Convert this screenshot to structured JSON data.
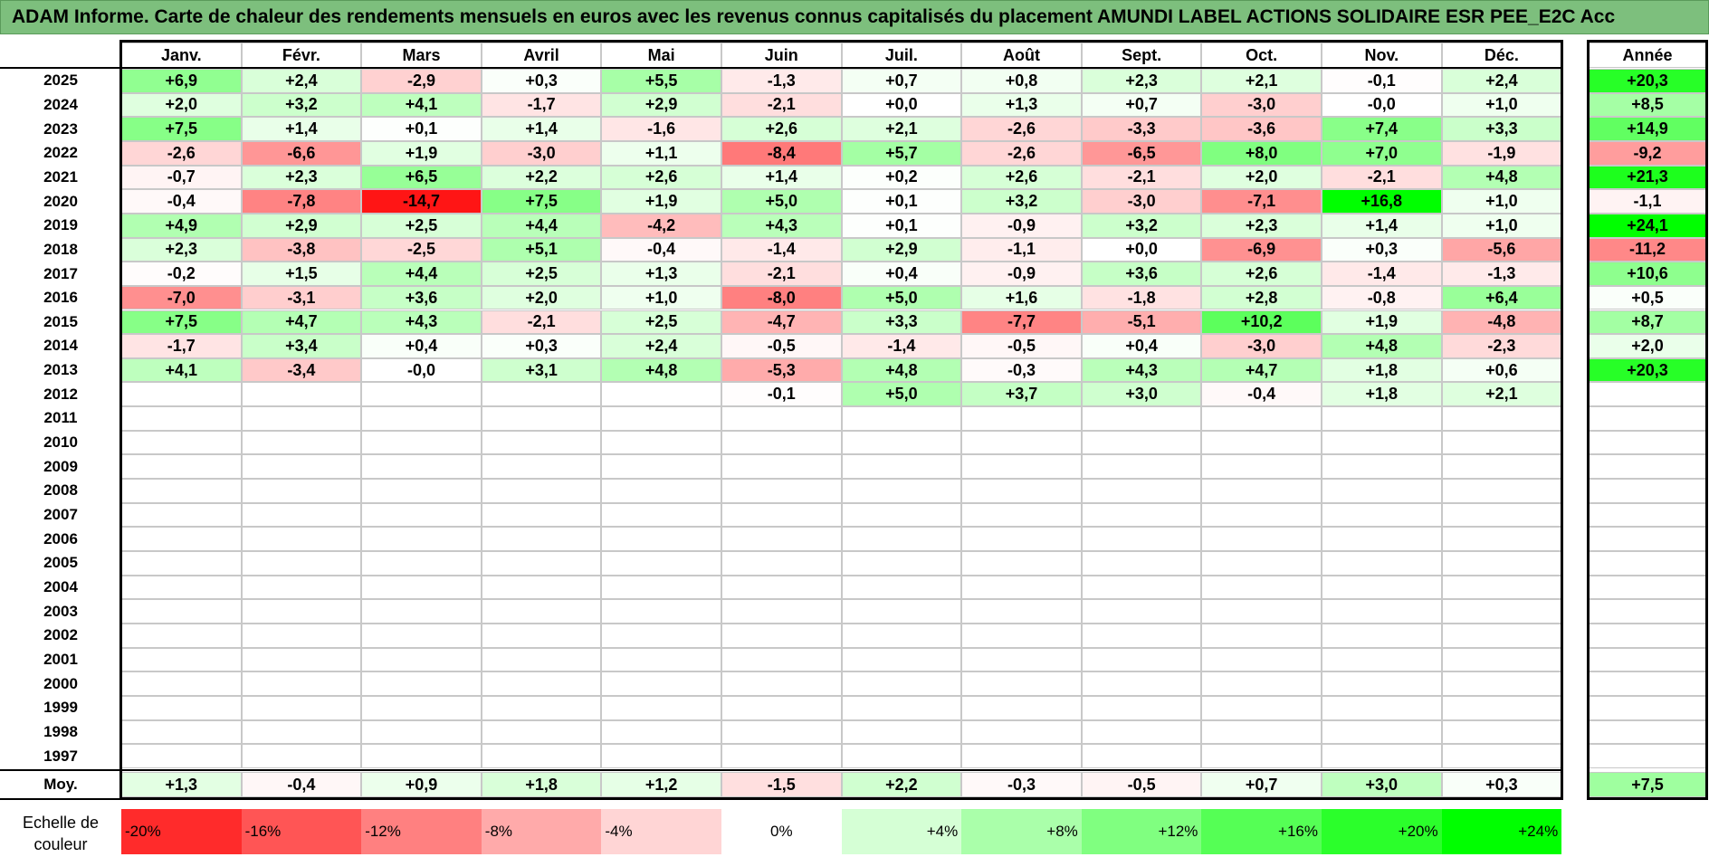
{
  "title": "ADAM Informe. Carte de chaleur des rendements mensuels en euros avec les revenus connus capitalisés du placement AMUNDI LABEL ACTIONS SOLIDAIRE ESR PEE_E2C Acc",
  "legend_label": "Echelle de couleur",
  "avg_label": "Moy.",
  "year_header": "Année",
  "colors": {
    "title_bg": "#7dbf7d",
    "neg_max": "#ff0000",
    "zero": "#ffffff",
    "pos_max": "#00ff00"
  },
  "chart_data": {
    "type": "heatmap",
    "months": [
      "Janv.",
      "Févr.",
      "Mars",
      "Avril",
      "Mai",
      "Juin",
      "Juil.",
      "Août",
      "Sept.",
      "Oct.",
      "Nov.",
      "Déc."
    ],
    "rows": [
      {
        "year": "2025",
        "values": [
          "+6,9",
          "+2,4",
          "-2,9",
          "+0,3",
          "+5,5",
          "-1,3",
          "+0,7",
          "+0,8",
          "+2,3",
          "+2,1",
          "-0,1",
          "+2,4"
        ],
        "annual": "+20,3"
      },
      {
        "year": "2024",
        "values": [
          "+2,0",
          "+3,2",
          "+4,1",
          "-1,7",
          "+2,9",
          "-2,1",
          "+0,0",
          "+1,3",
          "+0,7",
          "-3,0",
          "-0,0",
          "+1,0"
        ],
        "annual": "+8,5"
      },
      {
        "year": "2023",
        "values": [
          "+7,5",
          "+1,4",
          "+0,1",
          "+1,4",
          "-1,6",
          "+2,6",
          "+2,1",
          "-2,6",
          "-3,3",
          "-3,6",
          "+7,4",
          "+3,3"
        ],
        "annual": "+14,9"
      },
      {
        "year": "2022",
        "values": [
          "-2,6",
          "-6,6",
          "+1,9",
          "-3,0",
          "+1,1",
          "-8,4",
          "+5,7",
          "-2,6",
          "-6,5",
          "+8,0",
          "+7,0",
          "-1,9"
        ],
        "annual": "-9,2"
      },
      {
        "year": "2021",
        "values": [
          "-0,7",
          "+2,3",
          "+6,5",
          "+2,2",
          "+2,6",
          "+1,4",
          "+0,2",
          "+2,6",
          "-2,1",
          "+2,0",
          "-2,1",
          "+4,8"
        ],
        "annual": "+21,3"
      },
      {
        "year": "2020",
        "values": [
          "-0,4",
          "-7,8",
          "-14,7",
          "+7,5",
          "+1,9",
          "+5,0",
          "+0,1",
          "+3,2",
          "-3,0",
          "-7,1",
          "+16,8",
          "+1,0"
        ],
        "annual": "-1,1"
      },
      {
        "year": "2019",
        "values": [
          "+4,9",
          "+2,9",
          "+2,5",
          "+4,4",
          "-4,2",
          "+4,3",
          "+0,1",
          "-0,9",
          "+3,2",
          "+2,3",
          "+1,4",
          "+1,0"
        ],
        "annual": "+24,1"
      },
      {
        "year": "2018",
        "values": [
          "+2,3",
          "-3,8",
          "-2,5",
          "+5,1",
          "-0,4",
          "-1,4",
          "+2,9",
          "-1,1",
          "+0,0",
          "-6,9",
          "+0,3",
          "-5,6"
        ],
        "annual": "-11,2"
      },
      {
        "year": "2017",
        "values": [
          "-0,2",
          "+1,5",
          "+4,4",
          "+2,5",
          "+1,3",
          "-2,1",
          "+0,4",
          "-0,9",
          "+3,6",
          "+2,6",
          "-1,4",
          "-1,3"
        ],
        "annual": "+10,6"
      },
      {
        "year": "2016",
        "values": [
          "-7,0",
          "-3,1",
          "+3,6",
          "+2,0",
          "+1,0",
          "-8,0",
          "+5,0",
          "+1,6",
          "-1,8",
          "+2,8",
          "-0,8",
          "+6,4"
        ],
        "annual": "+0,5"
      },
      {
        "year": "2015",
        "values": [
          "+7,5",
          "+4,7",
          "+4,3",
          "-2,1",
          "+2,5",
          "-4,7",
          "+3,3",
          "-7,7",
          "-5,1",
          "+10,2",
          "+1,9",
          "-4,8"
        ],
        "annual": "+8,7"
      },
      {
        "year": "2014",
        "values": [
          "-1,7",
          "+3,4",
          "+0,4",
          "+0,3",
          "+2,4",
          "-0,5",
          "-1,4",
          "-0,5",
          "+0,4",
          "-3,0",
          "+4,8",
          "-2,3"
        ],
        "annual": "+2,0"
      },
      {
        "year": "2013",
        "values": [
          "+4,1",
          "-3,4",
          "-0,0",
          "+3,1",
          "+4,8",
          "-5,3",
          "+4,8",
          "-0,3",
          "+4,3",
          "+4,7",
          "+1,8",
          "+0,6"
        ],
        "annual": "+20,3"
      },
      {
        "year": "2012",
        "values": [
          "",
          "",
          "",
          "",
          "",
          "-0,1",
          "+5,0",
          "+3,7",
          "+3,0",
          "-0,4",
          "+1,8",
          "+2,1"
        ],
        "annual": ""
      },
      {
        "year": "2011",
        "values": [
          "",
          "",
          "",
          "",
          "",
          "",
          "",
          "",
          "",
          "",
          "",
          ""
        ],
        "annual": ""
      },
      {
        "year": "2010",
        "values": [
          "",
          "",
          "",
          "",
          "",
          "",
          "",
          "",
          "",
          "",
          "",
          ""
        ],
        "annual": ""
      },
      {
        "year": "2009",
        "values": [
          "",
          "",
          "",
          "",
          "",
          "",
          "",
          "",
          "",
          "",
          "",
          ""
        ],
        "annual": ""
      },
      {
        "year": "2008",
        "values": [
          "",
          "",
          "",
          "",
          "",
          "",
          "",
          "",
          "",
          "",
          "",
          ""
        ],
        "annual": ""
      },
      {
        "year": "2007",
        "values": [
          "",
          "",
          "",
          "",
          "",
          "",
          "",
          "",
          "",
          "",
          "",
          ""
        ],
        "annual": ""
      },
      {
        "year": "2006",
        "values": [
          "",
          "",
          "",
          "",
          "",
          "",
          "",
          "",
          "",
          "",
          "",
          ""
        ],
        "annual": ""
      },
      {
        "year": "2005",
        "values": [
          "",
          "",
          "",
          "",
          "",
          "",
          "",
          "",
          "",
          "",
          "",
          ""
        ],
        "annual": ""
      },
      {
        "year": "2004",
        "values": [
          "",
          "",
          "",
          "",
          "",
          "",
          "",
          "",
          "",
          "",
          "",
          ""
        ],
        "annual": ""
      },
      {
        "year": "2003",
        "values": [
          "",
          "",
          "",
          "",
          "",
          "",
          "",
          "",
          "",
          "",
          "",
          ""
        ],
        "annual": ""
      },
      {
        "year": "2002",
        "values": [
          "",
          "",
          "",
          "",
          "",
          "",
          "",
          "",
          "",
          "",
          "",
          ""
        ],
        "annual": ""
      },
      {
        "year": "2001",
        "values": [
          "",
          "",
          "",
          "",
          "",
          "",
          "",
          "",
          "",
          "",
          "",
          ""
        ],
        "annual": ""
      },
      {
        "year": "2000",
        "values": [
          "",
          "",
          "",
          "",
          "",
          "",
          "",
          "",
          "",
          "",
          "",
          ""
        ],
        "annual": ""
      },
      {
        "year": "1999",
        "values": [
          "",
          "",
          "",
          "",
          "",
          "",
          "",
          "",
          "",
          "",
          "",
          ""
        ],
        "annual": ""
      },
      {
        "year": "1998",
        "values": [
          "",
          "",
          "",
          "",
          "",
          "",
          "",
          "",
          "",
          "",
          "",
          ""
        ],
        "annual": ""
      },
      {
        "year": "1997",
        "values": [
          "",
          "",
          "",
          "",
          "",
          "",
          "",
          "",
          "",
          "",
          "",
          ""
        ],
        "annual": ""
      }
    ],
    "averages": [
      "+1,3",
      "-0,4",
      "+0,9",
      "+1,8",
      "+1,2",
      "-1,5",
      "+2,2",
      "-0,3",
      "-0,5",
      "+0,7",
      "+3,0",
      "+0,3"
    ],
    "annual_average": "+7,5",
    "color_scale": [
      "-20%",
      "-16%",
      "-12%",
      "-8%",
      "-4%",
      "0%",
      "+4%",
      "+8%",
      "+12%",
      "+16%",
      "+20%",
      "+24%"
    ],
    "monthly_color_range": [
      -16,
      16
    ],
    "annual_color_range": [
      -24,
      24
    ]
  }
}
